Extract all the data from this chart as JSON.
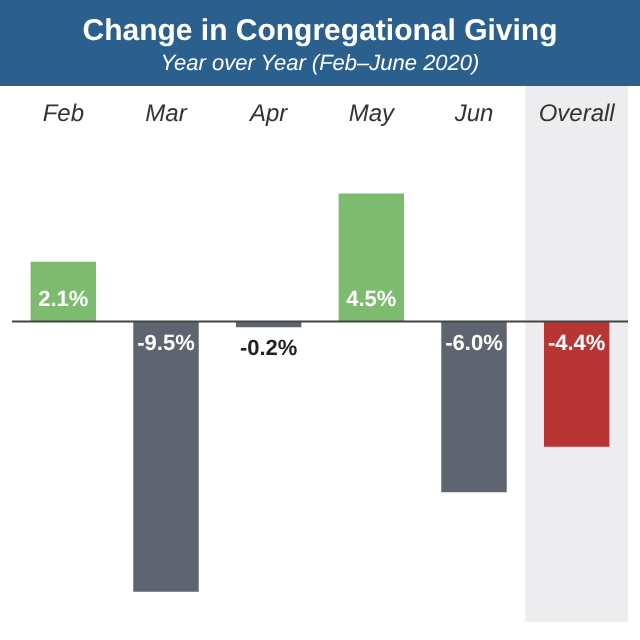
{
  "chart_data": {
    "type": "bar",
    "title": "Change in Congregational Giving",
    "subtitle": "Year over Year (Feb–June 2020)",
    "categories": [
      "Feb",
      "Mar",
      "Apr",
      "May",
      "Jun",
      "Overall"
    ],
    "values": [
      2.1,
      -9.5,
      -0.2,
      4.5,
      -6.0,
      -4.4
    ],
    "colors": [
      "#7dbb6e",
      "#5e6571",
      "#5e6571",
      "#7dbb6e",
      "#5e6571",
      "#b93534"
    ],
    "value_labels": [
      "2.1%",
      "-9.5%",
      "-0.2%",
      "4.5%",
      "-6.0%",
      "-4.4%"
    ],
    "bands": [
      {
        "axis": "x",
        "from": "Overall",
        "to": "Overall",
        "color": "#ededef"
      }
    ],
    "grid": false,
    "legend": false
  }
}
